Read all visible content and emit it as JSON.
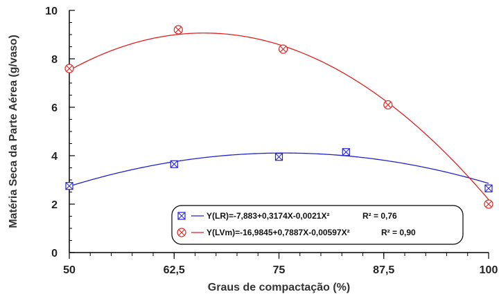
{
  "chart_data": {
    "type": "scatter",
    "xlabel": "Graus de compactação (%)",
    "ylabel": "Matéria Seca da Parte Aérea (g/vaso)",
    "xlim": [
      50,
      100
    ],
    "ylim": [
      0,
      10
    ],
    "x_ticks": [
      50,
      62.5,
      75,
      87.5,
      100
    ],
    "x_tick_labels": [
      "50",
      "62,5",
      "75",
      "87,5",
      "100"
    ],
    "y_ticks": [
      0,
      2,
      4,
      6,
      8,
      10
    ],
    "y_tick_labels": [
      "0",
      "2",
      "4",
      "6",
      "8",
      "10"
    ],
    "grid": false,
    "legend_position": "bottom-right",
    "series": [
      {
        "key": "lr",
        "marker": "square-x",
        "color": "#2222cc",
        "points": [
          [
            50,
            2.75
          ],
          [
            62.5,
            3.65
          ],
          [
            75,
            3.95
          ],
          [
            83,
            4.15
          ],
          [
            100,
            2.65
          ]
        ],
        "fit": [
          -7.883,
          0.3174,
          -0.0021
        ],
        "legend_label": "Y(LR)=-7,883+0,3174X-0,0021X²",
        "r2_label": "R² = 0,76"
      },
      {
        "key": "lvm",
        "marker": "circle-x",
        "color": "#e02020",
        "points": [
          [
            50,
            7.6
          ],
          [
            63,
            9.2
          ],
          [
            75.5,
            8.4
          ],
          [
            88,
            6.1
          ],
          [
            100,
            2.0
          ]
        ],
        "fit": [
          -16.9845,
          0.7887,
          -0.00597
        ],
        "legend_label": "Y(LVm)=-16,9845+0,7887X-0,00597X²",
        "r2_label": "R² = 0,90"
      }
    ]
  }
}
